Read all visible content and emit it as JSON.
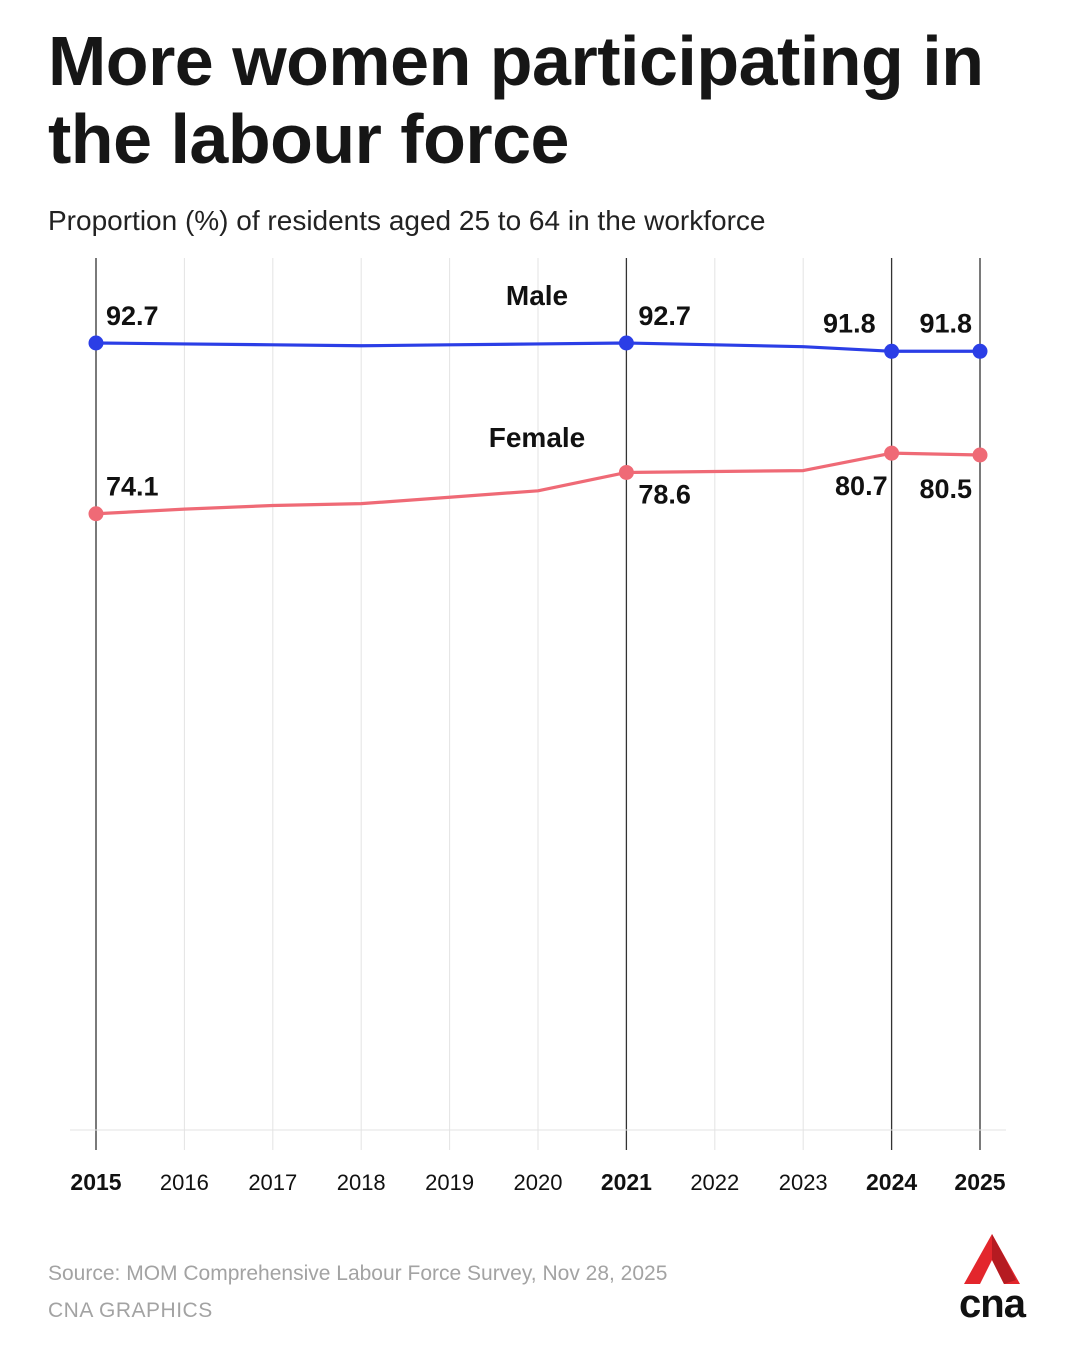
{
  "header": {
    "title": "More women participating in the labour force",
    "subtitle": "Proportion (%) of residents aged 25 to 64 in the workforce"
  },
  "chart_data": {
    "type": "line",
    "title": "More women participating in the labour force",
    "subtitle": "Proportion (%) of residents aged 25 to 64 in the workforce",
    "xlabel": "",
    "ylabel": "",
    "categories": [
      "2015",
      "2016",
      "2017",
      "2018",
      "2019",
      "2020",
      "2021",
      "2022",
      "2023",
      "2024",
      "2025"
    ],
    "highlighted_years": [
      "2015",
      "2021",
      "2024",
      "2025"
    ],
    "ylim": [
      0,
      100
    ],
    "y_axis_shown": false,
    "grid": "vertical",
    "series": [
      {
        "name": "Male",
        "color": "#2b3ee6",
        "values": [
          92.7,
          92.6,
          92.5,
          92.4,
          92.5,
          92.6,
          92.7,
          92.5,
          92.3,
          91.8,
          91.8
        ],
        "labels": [
          "92.7",
          "",
          "",
          "",
          "",
          "",
          "92.7",
          "",
          "",
          "91.8",
          "91.8"
        ]
      },
      {
        "name": "Female",
        "color": "#ef6a76",
        "values": [
          74.1,
          74.6,
          75.0,
          75.2,
          75.9,
          76.6,
          78.6,
          78.7,
          78.8,
          80.7,
          80.5
        ],
        "labels": [
          "74.1",
          "",
          "",
          "",
          "",
          "",
          "78.6",
          "",
          "",
          "80.7",
          "80.5"
        ]
      }
    ]
  },
  "footer": {
    "source": "Source: MOM Comprehensive Labour Force Survey, Nov 28, 2025",
    "credit": "CNA GRAPHICS",
    "logo_text": "cna",
    "logo_color": "#e3262c"
  }
}
